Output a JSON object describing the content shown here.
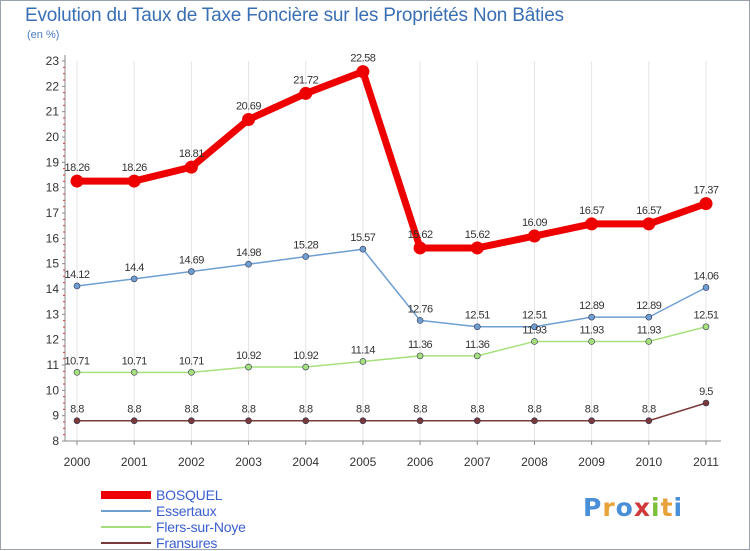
{
  "title": "Evolution du Taux de Taxe Foncière sur les Propriétés Non Bâties",
  "subtitle": "(en %)",
  "logo": {
    "text": "Proxiti",
    "letters": [
      {
        "ch": "P",
        "color": "#4a90d9"
      },
      {
        "ch": "r",
        "color": "#e8a23a"
      },
      {
        "ch": "o",
        "color": "#4a90d9"
      },
      {
        "ch": "x",
        "color": "#d13a3a"
      },
      {
        "ch": "i",
        "color": "#7cbf3a"
      },
      {
        "ch": "t",
        "color": "#e8a23a"
      },
      {
        "ch": "i",
        "color": "#4a90d9"
      }
    ]
  },
  "chart_data": {
    "type": "line",
    "title": "Evolution du Taux de Taxe Foncière sur les Propriétés Non Bâties",
    "ylabel": "(en %)",
    "x": [
      "2000",
      "2001",
      "2002",
      "2003",
      "2004",
      "2005",
      "2006",
      "2007",
      "2008",
      "2009",
      "2010",
      "2011"
    ],
    "ylim": [
      8,
      23
    ],
    "yticks": [
      "8",
      "9",
      "10",
      "11",
      "12",
      "13",
      "14",
      "15",
      "16",
      "17",
      "18",
      "19",
      "20",
      "21",
      "22",
      "23"
    ],
    "grid": "vertical",
    "legend": "bottom-left",
    "series": [
      {
        "name": "BOSQUEL",
        "color": "#ee0000",
        "values": [
          18.26,
          18.26,
          18.81,
          20.69,
          21.72,
          22.58,
          15.62,
          15.62,
          16.09,
          16.57,
          16.57,
          17.37
        ],
        "labels": [
          "18.26",
          "18.26",
          "18.81",
          "20.69",
          "21.72",
          "22.58",
          "15.62",
          "15.62",
          "16.09",
          "16.57",
          "16.57",
          "17.37"
        ]
      },
      {
        "name": "Essertaux",
        "color": "#6f9fd0",
        "values": [
          14.12,
          14.4,
          14.69,
          14.98,
          15.28,
          15.57,
          12.76,
          12.51,
          12.51,
          12.89,
          12.89,
          14.06
        ],
        "labels": [
          "14.12",
          "14.4",
          "14.69",
          "14.98",
          "15.28",
          "15.57",
          "12.76",
          "12.51",
          "12.51",
          "12.89",
          "12.89",
          "14.06"
        ]
      },
      {
        "name": "Flers-sur-Noye",
        "color": "#a6e07c",
        "values": [
          10.71,
          10.71,
          10.71,
          10.92,
          10.92,
          11.14,
          11.36,
          11.36,
          11.93,
          11.93,
          11.93,
          12.51
        ],
        "labels": [
          "10.71",
          "10.71",
          "10.71",
          "10.92",
          "10.92",
          "11.14",
          "11.36",
          "11.36",
          "11.93",
          "11.93",
          "11.93",
          "12.51"
        ]
      },
      {
        "name": "Fransures",
        "color": "#7a3a3a",
        "values": [
          8.8,
          8.8,
          8.8,
          8.8,
          8.8,
          8.8,
          8.8,
          8.8,
          8.8,
          8.8,
          8.8,
          9.5
        ],
        "labels": [
          "8.8",
          "8.8",
          "8.8",
          "8.8",
          "8.8",
          "8.8",
          "8.8",
          "8.8",
          "8.8",
          "8.8",
          "8.8",
          "9.5"
        ]
      }
    ]
  }
}
